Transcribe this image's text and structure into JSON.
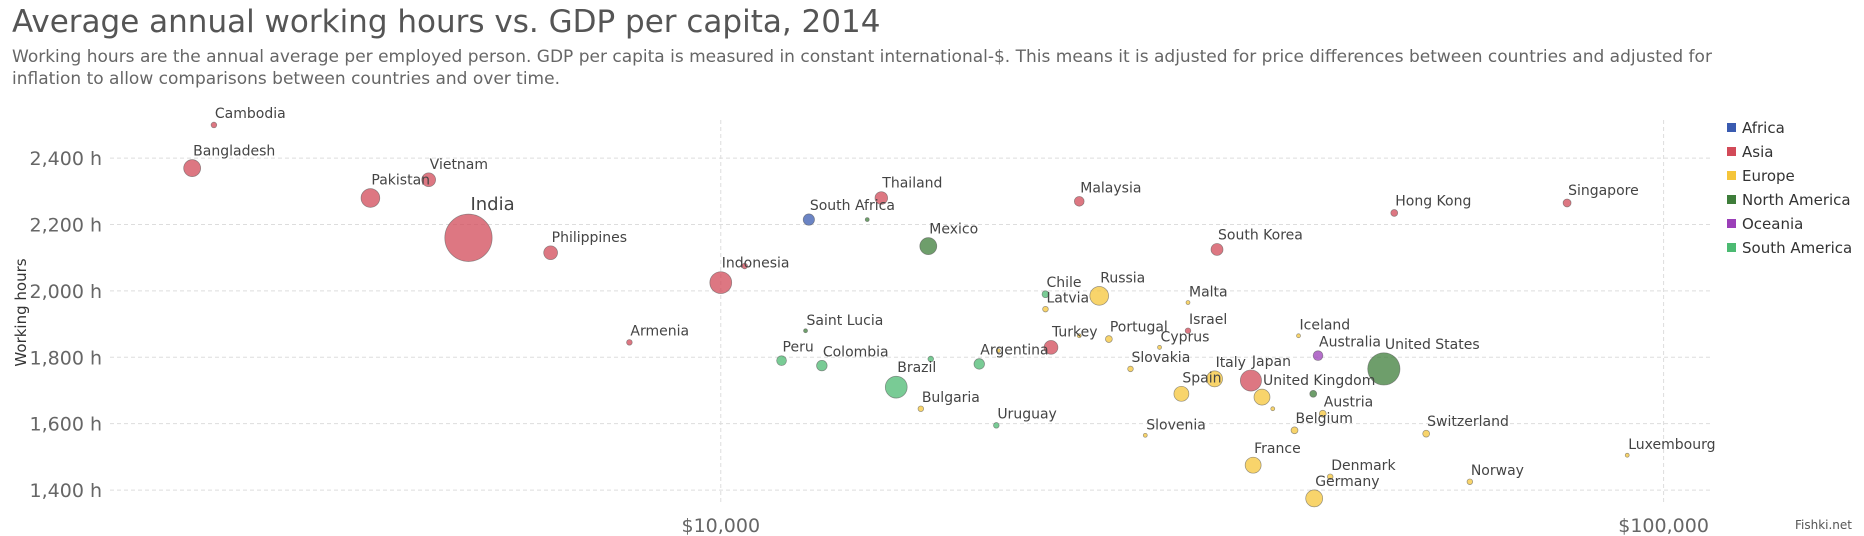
{
  "chart_data": {
    "type": "scatter",
    "title": "Average annual working hours vs. GDP per capita, 2014",
    "subtitle": "Working hours are the annual average per employed person. GDP per capita is measured in constant international-$. This means it is adjusted for price differences between countries and adjusted for inflation to allow comparisons between countries and over time.",
    "xlabel": "",
    "ylabel": "Working hours",
    "xscale": "log",
    "xlim": [
      2250,
      112000
    ],
    "ylim": [
      1355,
      2515
    ],
    "x_ticks": [
      {
        "value": 10000,
        "label": "$10,000"
      },
      {
        "value": 100000,
        "label": "$100,000"
      }
    ],
    "y_ticks": [
      {
        "value": 1400,
        "label": "1,400 h"
      },
      {
        "value": 1600,
        "label": "1,600 h"
      },
      {
        "value": 1800,
        "label": "1,800 h"
      },
      {
        "value": 2000,
        "label": "2,000 h"
      },
      {
        "value": 2200,
        "label": "2,200 h"
      },
      {
        "value": 2400,
        "label": "2,400 h"
      }
    ],
    "grid": true,
    "legend_position": "right",
    "legend": [
      {
        "name": "Africa",
        "color": "#3a5bb0"
      },
      {
        "name": "Asia",
        "color": "#d24a58"
      },
      {
        "name": "Europe",
        "color": "#f5c53a"
      },
      {
        "name": "North America",
        "color": "#3e7d3a"
      },
      {
        "name": "Oceania",
        "color": "#9b3fb8"
      },
      {
        "name": "South America",
        "color": "#4cba72"
      }
    ],
    "points": [
      {
        "label": "Cambodia",
        "x": 2900,
        "y": 2500,
        "region": "Asia",
        "size": 2
      },
      {
        "label": "Bangladesh",
        "x": 2750,
        "y": 2370,
        "region": "Asia",
        "size": 18
      },
      {
        "label": "Pakistan",
        "x": 4250,
        "y": 2280,
        "region": "Asia",
        "size": 22
      },
      {
        "label": "Vietnam",
        "x": 4900,
        "y": 2335,
        "region": "Asia",
        "size": 12
      },
      {
        "label": "India",
        "x": 5400,
        "y": 2160,
        "region": "Asia",
        "size": 140
      },
      {
        "label": "Philippines",
        "x": 6600,
        "y": 2115,
        "region": "Asia",
        "size": 12
      },
      {
        "label": "Armenia",
        "x": 8000,
        "y": 1845,
        "region": "Asia",
        "size": 2
      },
      {
        "label": "Indonesia",
        "x": 10000,
        "y": 2025,
        "region": "Asia",
        "size": 30
      },
      {
        "label": "",
        "x": 10600,
        "y": 2075,
        "region": "Asia",
        "size": 2
      },
      {
        "label": "South Africa",
        "x": 12400,
        "y": 2215,
        "region": "Africa",
        "size": 8
      },
      {
        "label": "",
        "x": 14300,
        "y": 2215,
        "region": "North America",
        "size": 1
      },
      {
        "label": "Thailand",
        "x": 14800,
        "y": 2280,
        "region": "Asia",
        "size": 10
      },
      {
        "label": "Mexico",
        "x": 16600,
        "y": 2135,
        "region": "North America",
        "size": 18
      },
      {
        "label": "Saint Lucia",
        "x": 12300,
        "y": 1880,
        "region": "North America",
        "size": 1
      },
      {
        "label": "Peru",
        "x": 11600,
        "y": 1790,
        "region": "South America",
        "size": 6
      },
      {
        "label": "Colombia",
        "x": 12800,
        "y": 1775,
        "region": "South America",
        "size": 7
      },
      {
        "label": "Brazil",
        "x": 15350,
        "y": 1710,
        "region": "South America",
        "size": 30
      },
      {
        "label": "",
        "x": 16700,
        "y": 1795,
        "region": "South America",
        "size": 2
      },
      {
        "label": "Bulgaria",
        "x": 16300,
        "y": 1645,
        "region": "Europe",
        "size": 2
      },
      {
        "label": "Argentina",
        "x": 18800,
        "y": 1780,
        "region": "South America",
        "size": 7
      },
      {
        "label": "",
        "x": 19700,
        "y": 1820,
        "region": "Europe",
        "size": 1
      },
      {
        "label": "Uruguay",
        "x": 19600,
        "y": 1595,
        "region": "South America",
        "size": 2
      },
      {
        "label": "Chile",
        "x": 22100,
        "y": 1990,
        "region": "South America",
        "size": 3
      },
      {
        "label": "Latvia",
        "x": 22100,
        "y": 1945,
        "region": "Europe",
        "size": 2
      },
      {
        "label": "Turkey",
        "x": 22400,
        "y": 1830,
        "region": "Asia",
        "size": 12
      },
      {
        "label": "Malaysia",
        "x": 24000,
        "y": 2270,
        "region": "Asia",
        "size": 6
      },
      {
        "label": "Russia",
        "x": 25200,
        "y": 1985,
        "region": "Europe",
        "size": 22
      },
      {
        "label": "Portugal",
        "x": 25800,
        "y": 1855,
        "region": "Europe",
        "size": 3
      },
      {
        "label": "",
        "x": 24000,
        "y": 1865,
        "region": "Europe",
        "size": 1
      },
      {
        "label": "Slovakia",
        "x": 27200,
        "y": 1765,
        "region": "Europe",
        "size": 2
      },
      {
        "label": "Cyprus",
        "x": 29200,
        "y": 1830,
        "region": "Europe",
        "size": 1
      },
      {
        "label": "Slovenia",
        "x": 28200,
        "y": 1565,
        "region": "Europe",
        "size": 1
      },
      {
        "label": "Malta",
        "x": 31300,
        "y": 1965,
        "region": "Europe",
        "size": 1
      },
      {
        "label": "Israel",
        "x": 31300,
        "y": 1880,
        "region": "Asia",
        "size": 2
      },
      {
        "label": "Spain",
        "x": 30800,
        "y": 1690,
        "region": "Europe",
        "size": 14
      },
      {
        "label": "Italy",
        "x": 33400,
        "y": 1735,
        "region": "Europe",
        "size": 16
      },
      {
        "label": "South Korea",
        "x": 33600,
        "y": 2125,
        "region": "Asia",
        "size": 9
      },
      {
        "label": "Japan",
        "x": 36500,
        "y": 1730,
        "region": "Asia",
        "size": 28
      },
      {
        "label": "United Kingdom",
        "x": 37500,
        "y": 1680,
        "region": "Europe",
        "size": 16
      },
      {
        "label": "",
        "x": 38500,
        "y": 1645,
        "region": "Europe",
        "size": 1
      },
      {
        "label": "France",
        "x": 36700,
        "y": 1475,
        "region": "Europe",
        "size": 16
      },
      {
        "label": "Iceland",
        "x": 41000,
        "y": 1865,
        "region": "Europe",
        "size": 1
      },
      {
        "label": "Belgium",
        "x": 40600,
        "y": 1580,
        "region": "Europe",
        "size": 3
      },
      {
        "label": "Australia",
        "x": 43000,
        "y": 1805,
        "region": "Oceania",
        "size": 6
      },
      {
        "label": "",
        "x": 42500,
        "y": 1690,
        "region": "North America",
        "size": 3
      },
      {
        "label": "Austria",
        "x": 43500,
        "y": 1630,
        "region": "Europe",
        "size": 3
      },
      {
        "label": "Denmark",
        "x": 44300,
        "y": 1440,
        "region": "Europe",
        "size": 2
      },
      {
        "label": "Germany",
        "x": 42600,
        "y": 1375,
        "region": "Europe",
        "size": 18
      },
      {
        "label": "United States",
        "x": 50500,
        "y": 1765,
        "region": "North America",
        "size": 65
      },
      {
        "label": "Switzerland",
        "x": 56000,
        "y": 1570,
        "region": "Europe",
        "size": 3
      },
      {
        "label": "Hong Kong",
        "x": 51800,
        "y": 2235,
        "region": "Asia",
        "size": 3
      },
      {
        "label": "Norway",
        "x": 62300,
        "y": 1425,
        "region": "Europe",
        "size": 2
      },
      {
        "label": "Singapore",
        "x": 79000,
        "y": 2265,
        "region": "Asia",
        "size": 4
      },
      {
        "label": "Luxembourg",
        "x": 91500,
        "y": 1505,
        "region": "Europe",
        "size": 1
      }
    ]
  },
  "credit": "Fishki.net"
}
